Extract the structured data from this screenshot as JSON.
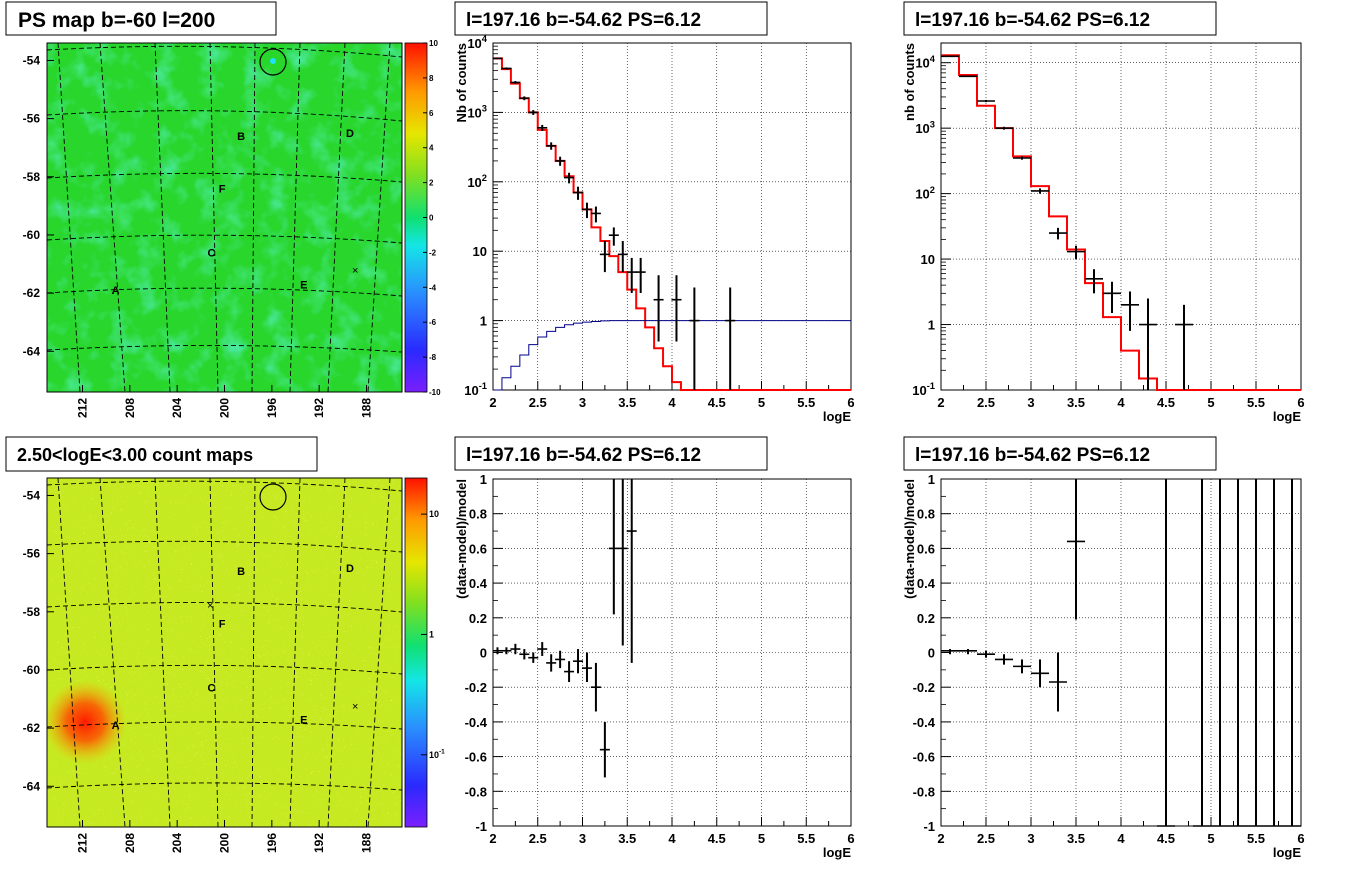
{
  "chart_data": [
    {
      "type": "heatmap",
      "title": "PS map b=-60 l=200",
      "x_ticks": [
        "212",
        "208",
        "204",
        "200",
        "196",
        "192",
        "188"
      ],
      "y_ticks": [
        "-54",
        "-56",
        "-58",
        "-60",
        "-62",
        "-64"
      ],
      "colorbar_ticks": [
        "10",
        "8",
        "6",
        "4",
        "2",
        "0",
        "-2",
        "-4",
        "-6",
        "-8",
        "-10"
      ],
      "colorbar_range": [
        -10,
        10
      ],
      "sources": [
        {
          "label": "A",
          "l": 209.2,
          "b": -61.9
        },
        {
          "label": "B",
          "l": 198.6,
          "b": -56.6
        },
        {
          "label": "C",
          "l": 201.1,
          "b": -60.6
        },
        {
          "label": "D",
          "l": 189.4,
          "b": -56.5
        },
        {
          "label": "E",
          "l": 193.3,
          "b": -61.7
        },
        {
          "label": "F",
          "l": 200.2,
          "b": -58.4
        }
      ]
    },
    {
      "type": "line",
      "title": "l=197.16 b=-54.62 PS=6.12",
      "xlabel": "logE",
      "ylabel": "Nb of counts",
      "xlim": [
        2,
        6
      ],
      "ylim": [
        0.1,
        10000
      ],
      "yscale": "log",
      "x_ticks": [
        "2",
        "2.5",
        "3",
        "3.5",
        "4",
        "4.5",
        "5",
        "5.5",
        "6"
      ],
      "y_ticks": [
        "10^-1",
        "1",
        "10",
        "10^2",
        "10^3",
        "10^4"
      ],
      "series": [
        {
          "type": "step",
          "color": "#ff0000",
          "x": [
            2.0,
            2.1,
            2.2,
            2.3,
            2.4,
            2.5,
            2.6,
            2.7,
            2.8,
            2.9,
            3.0,
            3.1,
            3.2,
            3.3,
            3.4,
            3.5,
            3.6,
            3.7,
            3.8,
            3.9,
            4.0,
            4.1,
            4.2,
            6.0
          ],
          "y": [
            6000,
            4200,
            2600,
            1600,
            1000,
            560,
            330,
            200,
            120,
            70,
            40,
            22,
            14,
            8.5,
            5,
            2.8,
            1.5,
            0.8,
            0.4,
            0.22,
            0.13,
            0.1,
            0.1,
            0.1
          ]
        },
        {
          "type": "step",
          "color": "#00008b",
          "x": [
            2.0,
            2.1,
            2.2,
            2.3,
            2.4,
            2.5,
            2.6,
            2.7,
            2.8,
            2.9,
            3.0,
            3.1,
            3.2,
            3.3,
            6.0
          ],
          "y": [
            0.1,
            0.15,
            0.22,
            0.32,
            0.45,
            0.58,
            0.7,
            0.8,
            0.87,
            0.92,
            0.95,
            0.97,
            0.99,
            1.0,
            1.0
          ]
        },
        {
          "type": "errorbar",
          "color": "#000000",
          "x": [
            2.05,
            2.15,
            2.25,
            2.35,
            2.45,
            2.55,
            2.65,
            2.75,
            2.85,
            2.95,
            3.05,
            3.15,
            3.25,
            3.35,
            3.45,
            3.55,
            3.65,
            3.85,
            4.05,
            4.25,
            4.65
          ],
          "y": [
            6000,
            4300,
            2700,
            1600,
            1000,
            600,
            330,
            200,
            115,
            70,
            40,
            35,
            9,
            17,
            9,
            5,
            5,
            2,
            2,
            1,
            1
          ],
          "lo": [
            5850,
            4150,
            2570,
            1500,
            920,
            540,
            290,
            170,
            95,
            55,
            30,
            26,
            5,
            12,
            5,
            2.5,
            2.5,
            0.5,
            0.5,
            0.1,
            0.1
          ],
          "hi": [
            6150,
            4450,
            2830,
            1700,
            1080,
            660,
            370,
            230,
            135,
            85,
            50,
            44,
            14,
            22,
            14,
            8,
            8,
            4.5,
            4.5,
            3,
            3
          ]
        }
      ]
    },
    {
      "type": "line",
      "title": "l=197.16 b=-54.62 PS=6.12",
      "xlabel": "logE",
      "ylabel": "nb of counts",
      "xlim": [
        2,
        6
      ],
      "ylim": [
        0.1,
        20000
      ],
      "yscale": "log",
      "x_ticks": [
        "2",
        "2.5",
        "3",
        "3.5",
        "4",
        "4.5",
        "5",
        "5.5",
        "6"
      ],
      "y_ticks": [
        "10^-1",
        "1",
        "10",
        "10^2",
        "10^3",
        "10^4"
      ],
      "series": [
        {
          "type": "step",
          "color": "#ff0000",
          "x": [
            2.0,
            2.2,
            2.4,
            2.6,
            2.8,
            3.0,
            3.2,
            3.4,
            3.6,
            3.8,
            4.0,
            4.2,
            4.4,
            6.0
          ],
          "y": [
            13000,
            6500,
            2200,
            1000,
            370,
            130,
            45,
            14,
            4.3,
            1.3,
            0.4,
            0.15,
            0.1,
            0.1
          ]
        },
        {
          "type": "errorbar",
          "color": "#000000",
          "x": [
            2.1,
            2.3,
            2.5,
            2.7,
            2.9,
            3.1,
            3.3,
            3.5,
            3.7,
            3.9,
            4.1,
            4.3,
            4.7
          ],
          "y": [
            12500,
            6200,
            2600,
            1000,
            350,
            110,
            25,
            13,
            5,
            3,
            2,
            1,
            1
          ],
          "lo": [
            12300,
            6050,
            2500,
            950,
            330,
            100,
            20,
            10,
            3,
            1.5,
            0.8,
            0.1,
            0.1
          ],
          "hi": [
            12700,
            6350,
            2700,
            1050,
            370,
            120,
            30,
            16,
            7,
            4.5,
            3.2,
            2.5,
            2
          ]
        }
      ]
    },
    {
      "type": "heatmap",
      "title": "2.50<logE<3.00 count maps",
      "x_ticks": [
        "212",
        "208",
        "204",
        "200",
        "196",
        "192",
        "188"
      ],
      "y_ticks": [
        "-54",
        "-56",
        "-58",
        "-60",
        "-62",
        "-64"
      ],
      "colorbar_ticks": [
        "10",
        "1",
        "10^-1"
      ],
      "colorbar_scale": "log",
      "sources": [
        {
          "label": "A",
          "l": 209.2,
          "b": -61.9
        },
        {
          "label": "B",
          "l": 198.6,
          "b": -56.6
        },
        {
          "label": "C",
          "l": 201.1,
          "b": -60.6
        },
        {
          "label": "D",
          "l": 189.4,
          "b": -56.5
        },
        {
          "label": "E",
          "l": 193.3,
          "b": -61.7
        },
        {
          "label": "F",
          "l": 200.2,
          "b": -58.4
        }
      ]
    },
    {
      "type": "scatter",
      "title": "l=197.16 b=-54.62 PS=6.12",
      "xlabel": "logE",
      "ylabel": "(data-model)/model",
      "xlim": [
        2,
        6
      ],
      "ylim": [
        -1,
        1
      ],
      "x_ticks": [
        "2",
        "2.5",
        "3",
        "3.5",
        "4",
        "4.5",
        "5",
        "5.5",
        "6"
      ],
      "y_ticks": [
        "-1",
        "-0.8",
        "-0.6",
        "-0.4",
        "-0.2",
        "0",
        "0.2",
        "0.4",
        "0.6",
        "0.8",
        "1"
      ],
      "series": [
        {
          "type": "errorbar",
          "color": "#000000",
          "x": [
            2.05,
            2.15,
            2.25,
            2.35,
            2.45,
            2.55,
            2.65,
            2.75,
            2.85,
            2.95,
            3.05,
            3.15,
            3.25,
            3.35,
            3.45,
            3.55
          ],
          "y": [
            0.01,
            0.01,
            0.02,
            -0.01,
            -0.03,
            0.02,
            -0.06,
            -0.04,
            -0.11,
            -0.05,
            -0.09,
            -0.2,
            -0.56,
            0.6,
            0.6,
            0.7
          ],
          "lo": [
            -0.01,
            -0.01,
            -0.01,
            -0.04,
            -0.06,
            -0.02,
            -0.11,
            -0.09,
            -0.17,
            -0.12,
            -0.17,
            -0.34,
            -0.72,
            0.22,
            0.04,
            -0.06
          ],
          "hi": [
            0.03,
            0.03,
            0.05,
            0.02,
            0.0,
            0.06,
            -0.01,
            0.01,
            -0.05,
            0.02,
            0.0,
            -0.06,
            -0.4,
            1.0,
            1.0,
            1.0
          ]
        }
      ]
    },
    {
      "type": "scatter",
      "title": "l=197.16 b=-54.62 PS=6.12",
      "xlabel": "logE",
      "ylabel": "(data-model)/model",
      "xlim": [
        2,
        6
      ],
      "ylim": [
        -1,
        1
      ],
      "x_ticks": [
        "2",
        "2.5",
        "3",
        "3.5",
        "4",
        "4.5",
        "5",
        "5.5",
        "6"
      ],
      "y_ticks": [
        "-1",
        "-0.8",
        "-0.6",
        "-0.4",
        "-0.2",
        "0",
        "0.2",
        "0.4",
        "0.6",
        "0.8",
        "1"
      ],
      "series": [
        {
          "type": "errorbar",
          "color": "#000000",
          "x": [
            2.1,
            2.3,
            2.5,
            2.7,
            2.9,
            3.1,
            3.3,
            3.5,
            4.5,
            4.9,
            5.1,
            5.3,
            5.5,
            5.7,
            5.9
          ],
          "y": [
            0.01,
            0.01,
            -0.01,
            -0.04,
            -0.08,
            -0.12,
            -0.17,
            0.64,
            -1.0,
            -1.0,
            -1.0,
            -1.0,
            -1.0,
            -1.0,
            -1.0
          ],
          "lo": [
            -0.01,
            -0.01,
            -0.03,
            -0.07,
            -0.12,
            -0.2,
            -0.34,
            0.19,
            -1.0,
            -1.0,
            -1.0,
            -1.0,
            -1.0,
            -1.0,
            -1.0
          ],
          "hi": [
            0.02,
            0.02,
            0.01,
            -0.01,
            -0.04,
            -0.04,
            0.0,
            1.0,
            1.0,
            1.0,
            1.0,
            1.0,
            1.0,
            1.0,
            1.0
          ]
        }
      ]
    }
  ]
}
